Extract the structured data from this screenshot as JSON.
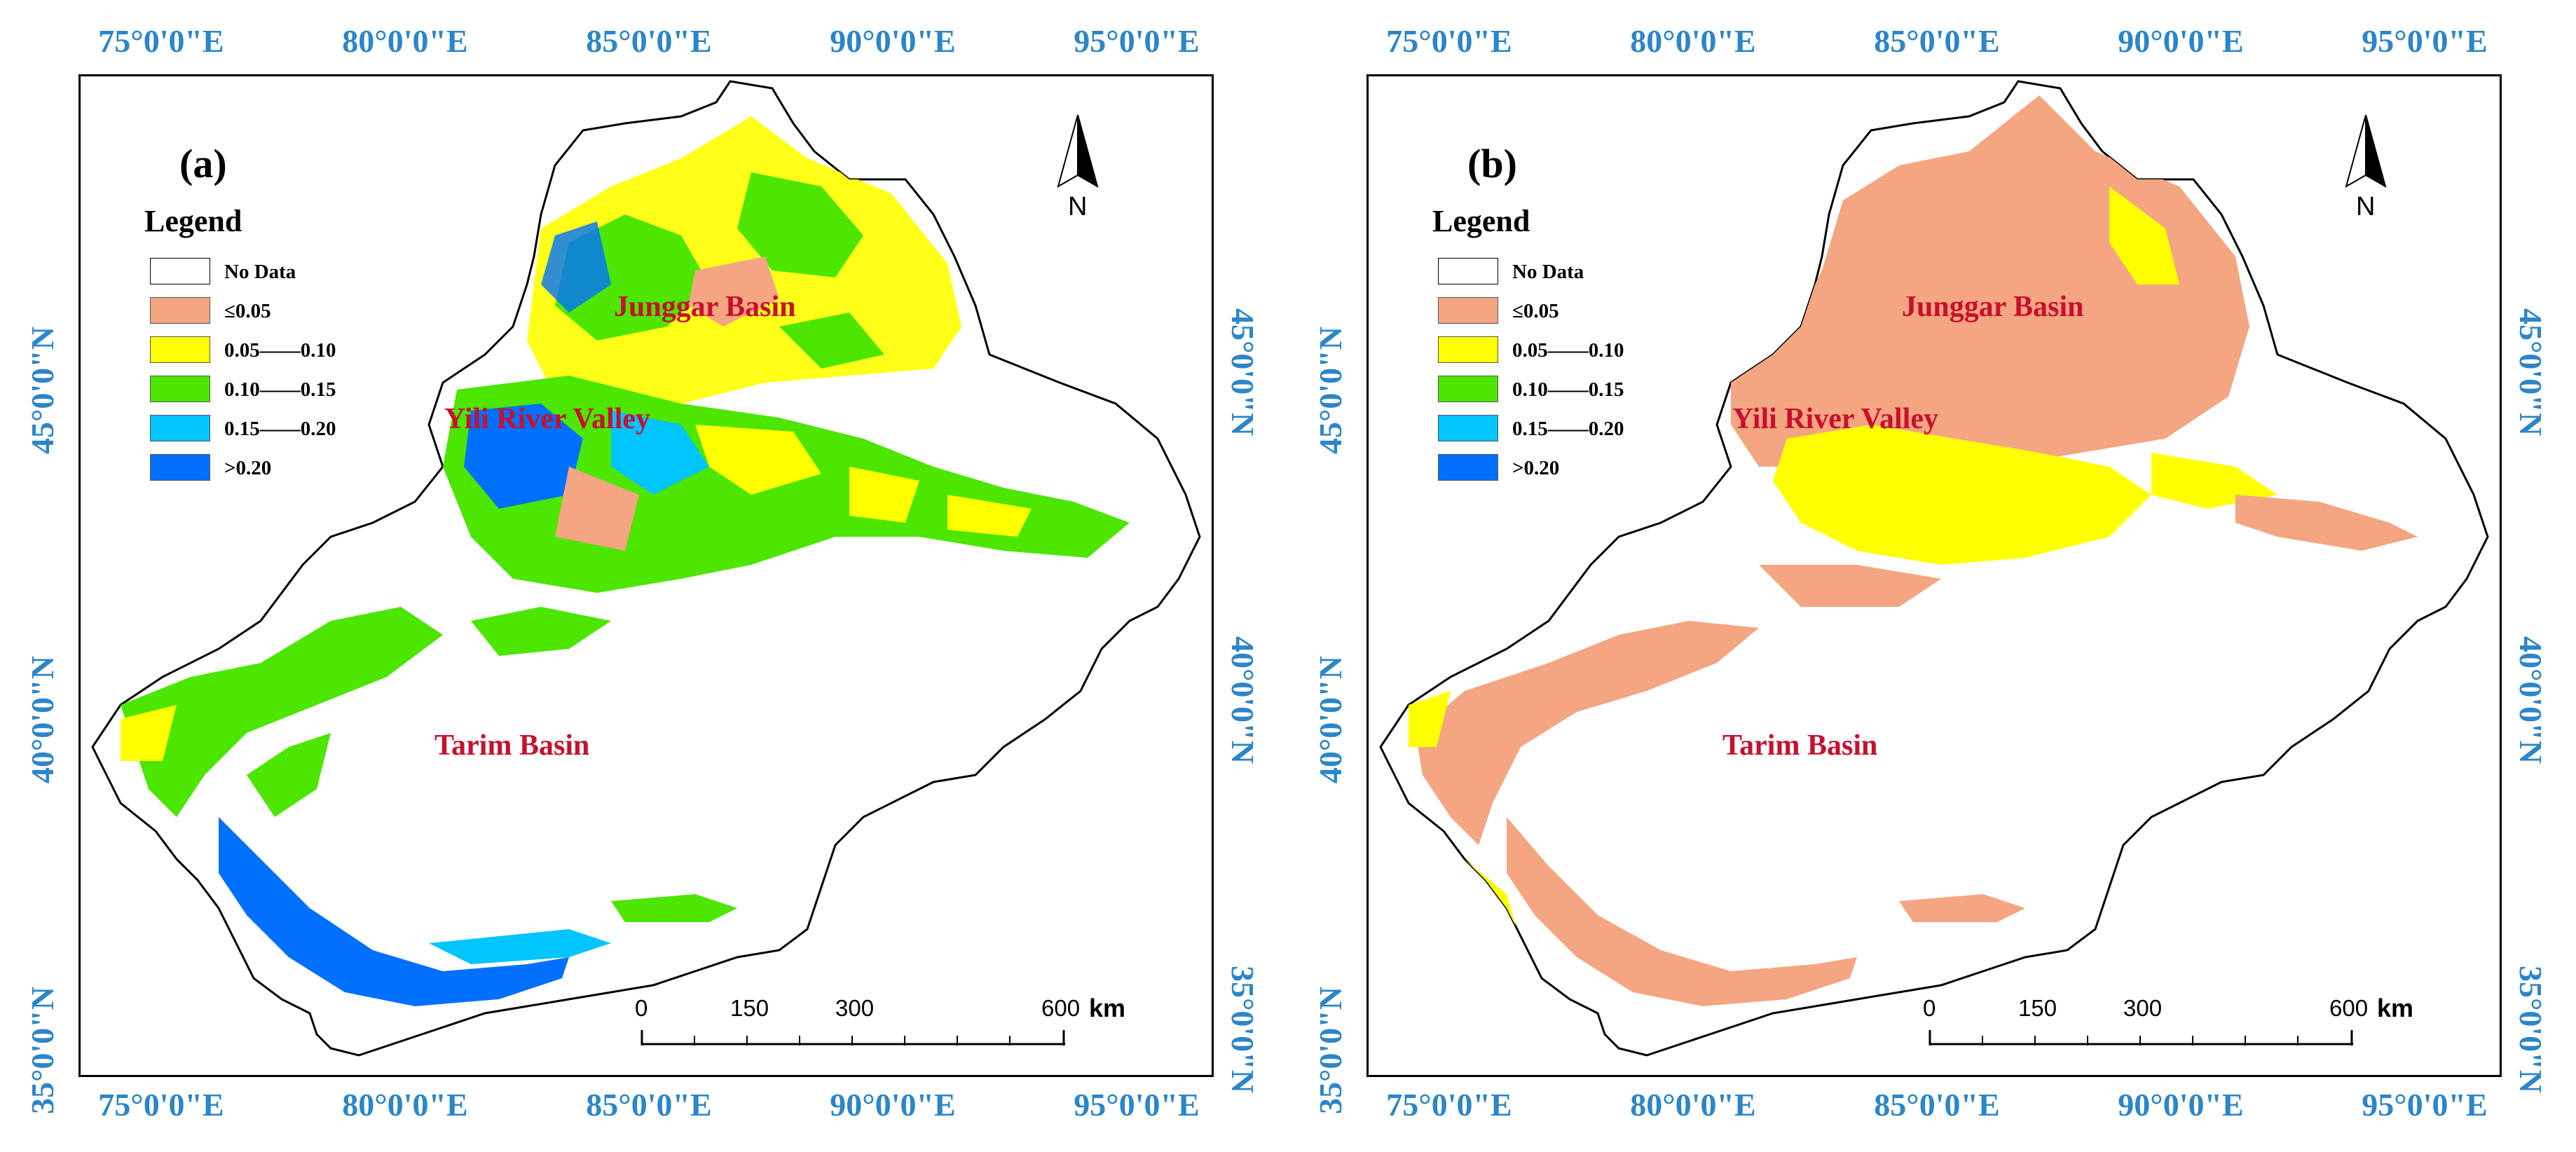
{
  "lon_labels": [
    "75°0'0\"E",
    "80°0'0\"E",
    "85°0'0\"E",
    "90°0'0\"E",
    "95°0'0\"E"
  ],
  "lat_labels": [
    "45°0'0\"N",
    "40°0'0\"N",
    "35°0'0\"N"
  ],
  "legend": {
    "title": "Legend",
    "items": [
      {
        "label": "No Data",
        "color": "#ffffff"
      },
      {
        "label": "≤0.05",
        "color": "#f4a582"
      },
      {
        "label": "0.05——0.10",
        "color": "#ffff00"
      },
      {
        "label": "0.10——0.15",
        "color": "#4ce600"
      },
      {
        "label": "0.15——0.20",
        "color": "#00c5ff"
      },
      {
        "label": ">0.20",
        "color": "#0070ff"
      }
    ]
  },
  "north": "N",
  "scalebar": {
    "ticks": [
      "0",
      "150",
      "300",
      "600"
    ],
    "unit": "km"
  },
  "panels": [
    {
      "label": "(a)",
      "regions": {
        "north_basin": "Junggar Basin",
        "valley": "Yili River Valley",
        "south_basin": "Tarim Basin"
      }
    },
    {
      "label": "(b)",
      "regions": {
        "north_basin": "Junggar Basin",
        "valley": "Yili River Valley",
        "south_basin": "Tarim Basin"
      }
    }
  ],
  "colors": {
    "axis_label": "#2b86c9",
    "region_label": "#c8102e"
  }
}
